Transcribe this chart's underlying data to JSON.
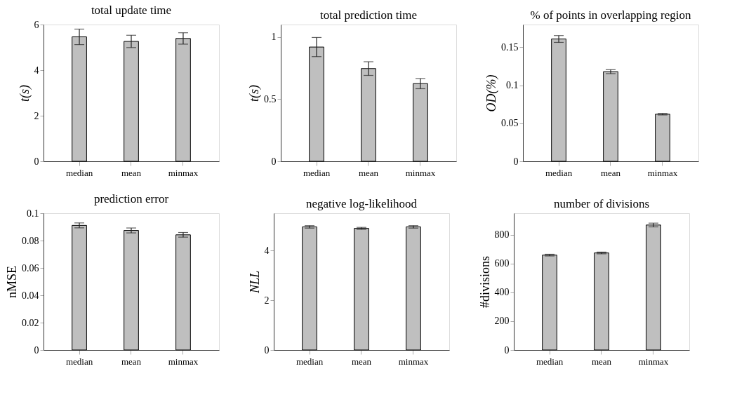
{
  "chart_data": [
    {
      "type": "bar",
      "title": "total update time",
      "ylabel": "t(s)",
      "categories": [
        "median",
        "mean",
        "minmax"
      ],
      "values": [
        5.46,
        5.26,
        5.39
      ],
      "errors": [
        0.34,
        0.27,
        0.25
      ],
      "color": "#bfbfbf",
      "ylim": [
        0,
        6
      ],
      "yticks": [
        0,
        2,
        4,
        6
      ],
      "grid": false,
      "legend": false
    },
    {
      "type": "bar",
      "title": "total prediction time",
      "ylabel": "t(s)",
      "categories": [
        "median",
        "mean",
        "minmax"
      ],
      "values": [
        0.919,
        0.746,
        0.625
      ],
      "errors": [
        0.077,
        0.055,
        0.041
      ],
      "color": "#bfbfbf",
      "ylim": [
        0,
        1.1
      ],
      "yticks": [
        0,
        0.5,
        1
      ],
      "grid": false,
      "legend": false
    },
    {
      "type": "bar",
      "title": "% of points in overlapping region",
      "ylabel": "OD(%)",
      "categories": [
        "median",
        "mean",
        "minmax"
      ],
      "values": [
        0.161,
        0.118,
        0.062
      ],
      "errors": [
        0.0045,
        0.0026,
        0.001
      ],
      "color": "#bfbfbf",
      "ylim": [
        0,
        0.18
      ],
      "yticks": [
        0,
        0.05,
        0.1,
        0.15
      ],
      "grid": false,
      "legend": false
    },
    {
      "type": "bar",
      "title": "prediction error",
      "ylabel": "nMSE",
      "categories": [
        "median",
        "mean",
        "minmax"
      ],
      "values": [
        0.0911,
        0.0874,
        0.0842
      ],
      "errors": [
        0.0018,
        0.0018,
        0.0017
      ],
      "color": "#bfbfbf",
      "ylim": [
        0,
        0.1
      ],
      "yticks": [
        0,
        0.02,
        0.04,
        0.06,
        0.08,
        0.1
      ],
      "grid": false,
      "legend": false
    },
    {
      "type": "bar",
      "title": "negative log-likelihood",
      "ylabel": "NLL",
      "categories": [
        "median",
        "mean",
        "minmax"
      ],
      "values": [
        4.95,
        4.89,
        4.95
      ],
      "errors": [
        0.05,
        0.04,
        0.05
      ],
      "color": "#bfbfbf",
      "ylim": [
        0,
        5.5
      ],
      "yticks": [
        0,
        2,
        4
      ],
      "grid": false,
      "legend": false
    },
    {
      "type": "bar",
      "title": "number of divisions",
      "ylabel": "#divisions",
      "categories": [
        "median",
        "mean",
        "minmax"
      ],
      "values": [
        659,
        674,
        868
      ],
      "errors": [
        6,
        6,
        13
      ],
      "color": "#bfbfbf",
      "ylim": [
        0,
        950
      ],
      "yticks": [
        0,
        200,
        400,
        600,
        800
      ],
      "grid": false,
      "legend": false
    }
  ]
}
